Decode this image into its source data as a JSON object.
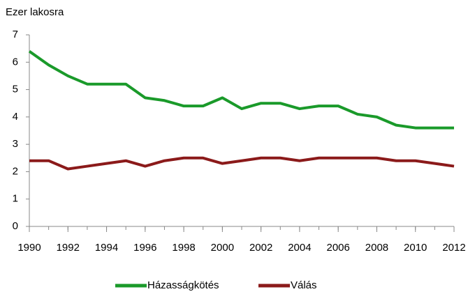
{
  "chart_data": {
    "type": "line",
    "ylabel": "Ezer lakosra",
    "x": [
      1990,
      1991,
      1992,
      1993,
      1994,
      1995,
      1996,
      1997,
      1998,
      1999,
      2000,
      2001,
      2002,
      2003,
      2004,
      2005,
      2006,
      2007,
      2008,
      2009,
      2010,
      2011,
      2012
    ],
    "series": [
      {
        "name": "Házasságkötés",
        "color": "#1a9a2a",
        "values": [
          6.4,
          5.9,
          5.5,
          5.2,
          5.2,
          5.2,
          4.7,
          4.6,
          4.4,
          4.4,
          4.7,
          4.3,
          4.5,
          4.5,
          4.3,
          4.4,
          4.4,
          4.1,
          4.0,
          3.7,
          3.6,
          3.6,
          3.6
        ]
      },
      {
        "name": "Válás",
        "color": "#8b1a1a",
        "values": [
          2.4,
          2.4,
          2.1,
          2.2,
          2.3,
          2.4,
          2.2,
          2.4,
          2.5,
          2.5,
          2.3,
          2.4,
          2.5,
          2.5,
          2.4,
          2.5,
          2.5,
          2.5,
          2.5,
          2.4,
          2.4,
          2.3,
          2.2
        ]
      }
    ],
    "xlim": [
      1990,
      2012
    ],
    "xticks": [
      1990,
      1992,
      1994,
      1996,
      1998,
      2000,
      2002,
      2004,
      2006,
      2008,
      2010,
      2012
    ],
    "ylim": [
      0,
      7
    ],
    "yticks": [
      0,
      1,
      2,
      3,
      4,
      5,
      6,
      7
    ],
    "grid": false,
    "legend": "bottom"
  }
}
